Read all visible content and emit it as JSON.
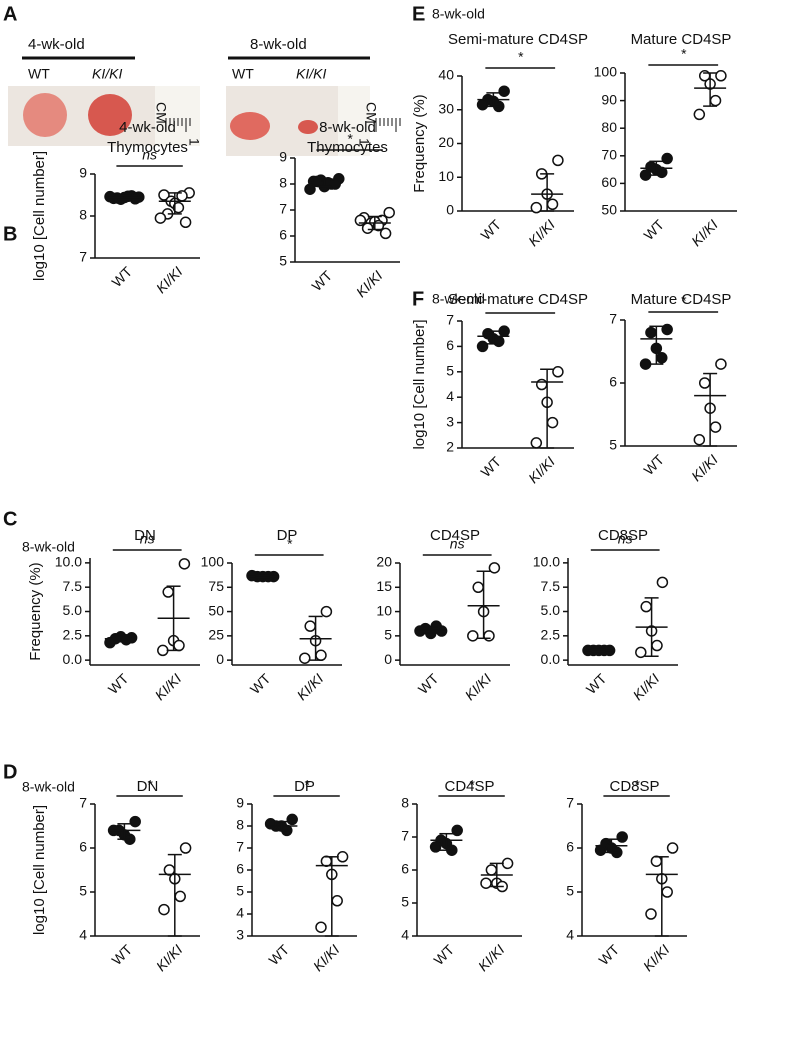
{
  "panel_letters": [
    "A",
    "B",
    "C",
    "D",
    "E",
    "F"
  ],
  "group_notes": {
    "C": "8-wk-old",
    "D": "8-wk-old",
    "E": "8-wk-old",
    "F": "8-wk-old"
  },
  "photos": [
    {
      "title": "4-wk-old",
      "labels": [
        "WT",
        "KI/KI"
      ],
      "ruler_label": "CM",
      "ruler_mark": "1"
    },
    {
      "title": "8-wk-old",
      "labels": [
        "WT",
        "KI/KI"
      ],
      "ruler_label": "CM",
      "ruler_mark": "1"
    }
  ],
  "chart_data": [
    {
      "type": "dot",
      "title": [
        "4-wk-old",
        "Thymocytes"
      ],
      "ylabel": "log10 [Cell number]",
      "significance": "ns",
      "categories": [
        "WT",
        "KI/KI"
      ],
      "ylim": [
        7,
        9
      ],
      "yticks": [
        7,
        8,
        9
      ],
      "groups": [
        {
          "values": [
            8.45,
            8.42,
            8.48,
            8.4,
            8.44,
            8.47,
            8.43,
            8.41,
            8.46
          ],
          "center": 8.44,
          "low": 8.39,
          "high": 8.49
        },
        {
          "values": [
            8.55,
            8.5,
            8.48,
            8.35,
            8.3,
            8.2,
            8.05,
            7.85,
            7.95
          ],
          "center": 8.35,
          "low": 8.05,
          "high": 8.55
        }
      ]
    },
    {
      "type": "dot",
      "title": [
        "8-wk-old",
        "Thymocytes"
      ],
      "significance": "*",
      "categories": [
        "WT",
        "KI/KI"
      ],
      "ylim": [
        5,
        9
      ],
      "yticks": [
        5,
        6,
        7,
        8,
        9
      ],
      "groups": [
        {
          "values": [
            8.2,
            8.1,
            8.0,
            8.15,
            7.9,
            8.05,
            8.1,
            8.0,
            7.8
          ],
          "center": 8.05,
          "low": 7.9,
          "high": 8.2
        },
        {
          "values": [
            6.9,
            6.7,
            6.6,
            6.5,
            6.55,
            6.4,
            6.3,
            6.1,
            6.6
          ],
          "center": 6.5,
          "low": 6.25,
          "high": 6.75
        }
      ]
    },
    {
      "type": "dot",
      "title": "DN",
      "ylabel": "Frequency (%)",
      "significance": "ns",
      "categories": [
        "WT",
        "KI/KI"
      ],
      "ylim": [
        -0.5,
        10.5
      ],
      "yticks": [
        {
          "value": 0,
          "label": "0.0"
        },
        {
          "value": 2.5,
          "label": "2.5"
        },
        {
          "value": 5,
          "label": "5.0"
        },
        {
          "value": 7.5,
          "label": "7.5"
        },
        {
          "value": 10,
          "label": "10.0"
        }
      ],
      "groups": [
        {
          "values": [
            2.3,
            2.2,
            2.4,
            2.1,
            1.8
          ],
          "center": 2.2,
          "low": 1.9,
          "high": 2.5
        },
        {
          "values": [
            9.9,
            7.0,
            2.0,
            1.5,
            1.0
          ],
          "center": 4.3,
          "low": 1.0,
          "high": 7.6
        }
      ]
    },
    {
      "type": "dot",
      "title": "DP",
      "significance": "*",
      "categories": [
        "WT",
        "KI/KI"
      ],
      "ylim": [
        -5,
        100
      ],
      "yticks": [
        0,
        25,
        50,
        75,
        100
      ],
      "groups": [
        {
          "values": [
            86,
            86,
            86,
            86,
            87
          ],
          "center": 86,
          "low": 85,
          "high": 87
        },
        {
          "values": [
            50,
            35,
            20,
            5,
            2
          ],
          "center": 22,
          "low": 0,
          "high": 45
        }
      ]
    },
    {
      "type": "dot",
      "title": "CD4SP",
      "significance": "ns",
      "categories": [
        "WT",
        "KI/KI"
      ],
      "ylim": [
        -1,
        20
      ],
      "yticks": [
        0,
        5,
        10,
        15,
        20
      ],
      "groups": [
        {
          "values": [
            6,
            6.5,
            5.5,
            7,
            6
          ],
          "center": 6.2,
          "low": 5.6,
          "high": 6.8
        },
        {
          "values": [
            19,
            15,
            10,
            5,
            5
          ],
          "center": 11.2,
          "low": 4.5,
          "high": 18.3
        }
      ]
    },
    {
      "type": "dot",
      "title": "CD8SP",
      "significance": "ns",
      "categories": [
        "WT",
        "KI/KI"
      ],
      "ylim": [
        -0.5,
        10.5
      ],
      "yticks": [
        {
          "value": 0,
          "label": "0.0"
        },
        {
          "value": 2.5,
          "label": "2.5"
        },
        {
          "value": 5,
          "label": "5.0"
        },
        {
          "value": 7.5,
          "label": "7.5"
        },
        {
          "value": 10,
          "label": "10.0"
        }
      ],
      "groups": [
        {
          "values": [
            1,
            1,
            1,
            1,
            1
          ],
          "center": 1,
          "low": 0.9,
          "high": 1.1
        },
        {
          "values": [
            8,
            5.5,
            3,
            1.5,
            0.8
          ],
          "center": 3.4,
          "low": 0.4,
          "high": 6.4
        }
      ]
    },
    {
      "type": "dot",
      "title": "DN",
      "ylabel": "log10 [Cell number]",
      "significance": "*",
      "categories": [
        "WT",
        "KI/KI"
      ],
      "ylim": [
        4,
        7
      ],
      "yticks": [
        4,
        5,
        6,
        7
      ],
      "groups": [
        {
          "values": [
            6.6,
            6.4,
            6.3,
            6.2,
            6.4
          ],
          "center": 6.4,
          "low": 6.2,
          "high": 6.55
        },
        {
          "values": [
            6.0,
            5.5,
            5.3,
            4.9,
            4.6
          ],
          "center": 5.4,
          "low": 4.0,
          "high": 5.85
        }
      ]
    },
    {
      "type": "dot",
      "title": "DP",
      "significance": "*",
      "categories": [
        "WT",
        "KI/KI"
      ],
      "ylim": [
        3,
        9
      ],
      "yticks": [
        3,
        4,
        5,
        6,
        7,
        8,
        9
      ],
      "groups": [
        {
          "values": [
            8.3,
            8.0,
            8.0,
            7.8,
            8.1
          ],
          "center": 8,
          "low": 7.8,
          "high": 8.2
        },
        {
          "values": [
            6.6,
            6.4,
            5.8,
            4.6,
            3.4
          ],
          "center": 6.2,
          "low": 3.0,
          "high": 6.6
        }
      ]
    },
    {
      "type": "dot",
      "title": "CD4SP",
      "significance": "*",
      "categories": [
        "WT",
        "KI/KI"
      ],
      "ylim": [
        4,
        8
      ],
      "yticks": [
        4,
        5,
        6,
        7,
        8
      ],
      "groups": [
        {
          "values": [
            7.2,
            6.9,
            6.8,
            6.6,
            6.7
          ],
          "center": 6.9,
          "low": 6.6,
          "high": 7.1
        },
        {
          "values": [
            6.2,
            6.0,
            5.6,
            5.5,
            5.6
          ],
          "center": 5.85,
          "low": 5.5,
          "high": 6.2
        }
      ]
    },
    {
      "type": "dot",
      "title": "CD8SP",
      "significance": "*",
      "categories": [
        "WT",
        "KI/KI"
      ],
      "ylim": [
        4,
        7
      ],
      "yticks": [
        4,
        5,
        6,
        7
      ],
      "groups": [
        {
          "values": [
            6.25,
            6.1,
            6.0,
            5.9,
            5.95
          ],
          "center": 6.05,
          "low": 5.9,
          "high": 6.2
        },
        {
          "values": [
            6.0,
            5.7,
            5.3,
            5.0,
            4.5
          ],
          "center": 5.4,
          "low": 4.0,
          "high": 5.8
        }
      ]
    },
    {
      "type": "dot",
      "title": "Semi-mature CD4SP",
      "ylabel": "Frequency (%)",
      "significance": "*",
      "categories": [
        "WT",
        "KI/KI"
      ],
      "ylim": [
        0,
        40
      ],
      "yticks": [
        0,
        10,
        20,
        30,
        40
      ],
      "groups": [
        {
          "values": [
            35.5,
            33,
            32.5,
            31,
            31.5
          ],
          "center": 33,
          "low": 31,
          "high": 35
        },
        {
          "values": [
            15,
            11,
            5,
            2,
            1
          ],
          "center": 5,
          "low": 0,
          "high": 11
        }
      ]
    },
    {
      "type": "dot",
      "title": "Mature CD4SP",
      "significance": "*",
      "categories": [
        "WT",
        "KI/KI"
      ],
      "ylim": [
        50,
        100
      ],
      "yticks": [
        50,
        60,
        70,
        80,
        90,
        100
      ],
      "groups": [
        {
          "values": [
            69,
            66,
            65,
            64,
            63
          ],
          "center": 65.5,
          "low": 63,
          "high": 68
        },
        {
          "values": [
            99,
            99,
            96,
            90,
            85
          ],
          "center": 94.5,
          "low": 88,
          "high": 100
        }
      ]
    },
    {
      "type": "dot",
      "title": "Semi-mature CD4SP",
      "ylabel": "log10 [Cell number]",
      "significance": "*",
      "categories": [
        "WT",
        "KI/KI"
      ],
      "ylim": [
        2,
        7
      ],
      "yticks": [
        2,
        3,
        4,
        5,
        6,
        7
      ],
      "groups": [
        {
          "values": [
            6.6,
            6.5,
            6.3,
            6.2,
            6.0
          ],
          "center": 6.4,
          "low": 6.1,
          "high": 6.6
        },
        {
          "values": [
            5.0,
            4.5,
            3.8,
            3.0,
            2.2
          ],
          "center": 4.6,
          "low": 2.0,
          "high": 5.1
        }
      ]
    },
    {
      "type": "dot",
      "title": "Mature CD4SP",
      "significance": "*",
      "categories": [
        "WT",
        "KI/KI"
      ],
      "ylim": [
        5,
        7
      ],
      "yticks": [
        5,
        6,
        7
      ],
      "groups": [
        {
          "values": [
            6.85,
            6.8,
            6.55,
            6.4,
            6.3
          ],
          "center": 6.7,
          "low": 6.3,
          "high": 6.9
        },
        {
          "values": [
            6.3,
            6.0,
            5.6,
            5.3,
            5.1
          ],
          "center": 5.8,
          "low": 5.0,
          "high": 6.15
        }
      ]
    }
  ]
}
